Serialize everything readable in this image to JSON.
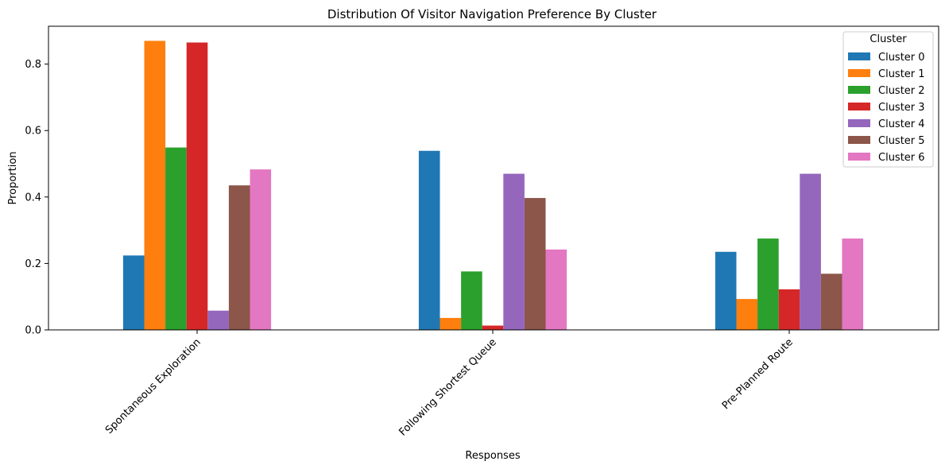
{
  "chart_data": {
    "type": "bar",
    "title": "Distribution Of Visitor Navigation Preference By Cluster",
    "xlabel": "Responses",
    "ylabel": "Proportion",
    "ylim": [
      0,
      0.914
    ],
    "yticks": [
      "0.0",
      "0.2",
      "0.4",
      "0.6",
      "0.8"
    ],
    "categories": [
      "Spontaneous Exploration",
      "Following Shortest Queue",
      "Pre-Planned Route"
    ],
    "legend": {
      "title": "Cluster",
      "placement": "top-right"
    },
    "grid": false,
    "series": [
      {
        "name": "Cluster 0",
        "color": "#1f77b4",
        "values": [
          0.224,
          0.539,
          0.235
        ]
      },
      {
        "name": "Cluster 1",
        "color": "#ff7f0e",
        "values": [
          0.87,
          0.036,
          0.093
        ]
      },
      {
        "name": "Cluster 2",
        "color": "#2ca02c",
        "values": [
          0.549,
          0.176,
          0.275
        ]
      },
      {
        "name": "Cluster 3",
        "color": "#d62728",
        "values": [
          0.865,
          0.013,
          0.122
        ]
      },
      {
        "name": "Cluster 4",
        "color": "#9467bd",
        "values": [
          0.058,
          0.47,
          0.47
        ]
      },
      {
        "name": "Cluster 5",
        "color": "#8c564b",
        "values": [
          0.435,
          0.397,
          0.169
        ]
      },
      {
        "name": "Cluster 6",
        "color": "#e377c2",
        "values": [
          0.483,
          0.242,
          0.275
        ]
      }
    ]
  }
}
